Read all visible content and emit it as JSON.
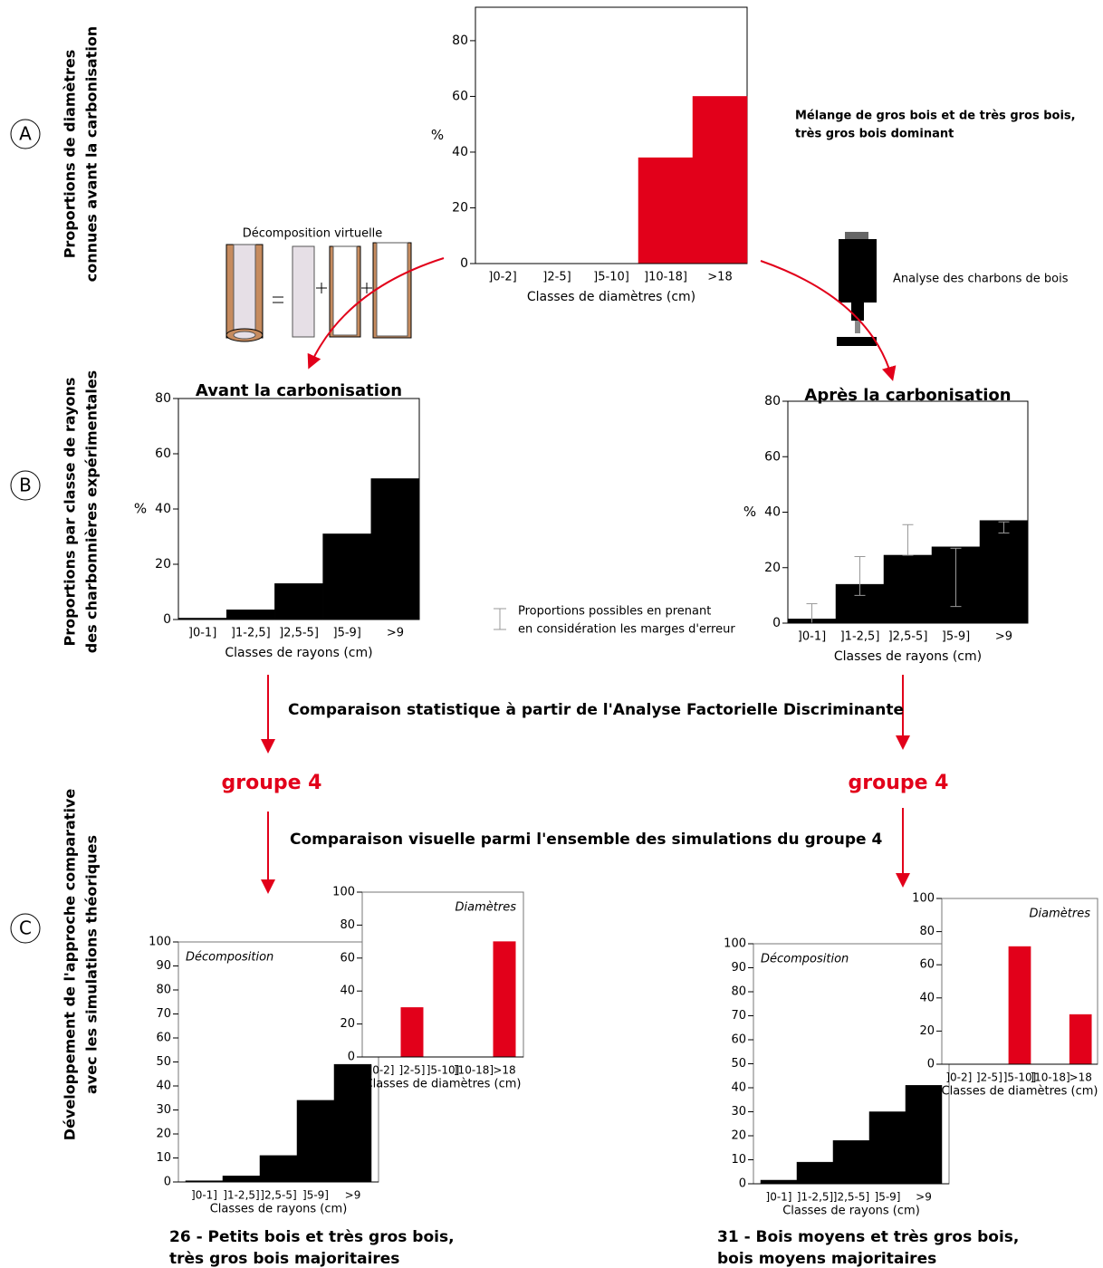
{
  "chart_data": [
    {
      "type": "bar",
      "xlabel": "Classes de diamètres (cm)",
      "ylabel": "%",
      "categories": [
        "]0-2]",
        "]2-5]",
        "]5-10]",
        "]10-18]",
        ">18"
      ],
      "values": [
        0,
        0,
        0,
        38,
        60
      ],
      "color": "#e2001a",
      "ylim": [
        0,
        92
      ],
      "yticks": [
        0,
        20,
        40,
        60,
        80
      ]
    },
    {
      "type": "bar",
      "title": "Avant la carbonisation",
      "xlabel": "Classes de rayons (cm)",
      "ylabel": "%",
      "categories": [
        "]0-1]",
        "]1-2,5]",
        "]2,5-5]",
        "]5-9]",
        ">9"
      ],
      "values": [
        0.5,
        3.5,
        13,
        31,
        51
      ],
      "color": "#000000",
      "ylim": [
        0,
        80
      ],
      "yticks": [
        0,
        20,
        40,
        60,
        80
      ]
    },
    {
      "type": "bar",
      "title": "Après la carbonisation",
      "xlabel": "Classes de rayons (cm)",
      "ylabel": "%",
      "categories": [
        "]0-1]",
        "]1-2,5]",
        "]2,5-5]",
        "]5-9]",
        ">9"
      ],
      "values": [
        1.5,
        14,
        24.5,
        27.5,
        37
      ],
      "errors": [
        [
          0,
          7
        ],
        [
          10,
          24
        ],
        [
          24.5,
          35.5
        ],
        [
          6,
          27
        ],
        [
          32.5,
          36.5
        ]
      ],
      "error_color": "#999999",
      "color": "#000000",
      "ylim": [
        0,
        80
      ],
      "yticks": [
        0,
        20,
        40,
        60,
        80
      ]
    },
    {
      "type": "bar",
      "inset_label": "Décomposition",
      "xlabel": "Classes de rayons (cm)",
      "categories": [
        "]0-1]",
        "]1-2,5]",
        "]2,5-5]",
        "]5-9]",
        ">9"
      ],
      "values": [
        0.5,
        2.5,
        11,
        34,
        49
      ],
      "color": "#000000",
      "ylim": [
        0,
        100
      ],
      "yticks": [
        0,
        10,
        20,
        30,
        40,
        50,
        60,
        70,
        80,
        90,
        100
      ]
    },
    {
      "type": "bar",
      "inset_label": "Diamètres",
      "xlabel": "Classes de diamètres (cm)",
      "categories": [
        "]0-2]",
        "]2-5]",
        "]5-10]",
        "]10-18]",
        ">18"
      ],
      "values": [
        0,
        30,
        0,
        0,
        70
      ],
      "color": "#e2001a",
      "ylim": [
        0,
        100
      ],
      "yticks": [
        0,
        20,
        40,
        60,
        80,
        100
      ]
    },
    {
      "type": "bar",
      "inset_label": "Décomposition",
      "xlabel": "Classes de rayons (cm)",
      "categories": [
        "]0-1]",
        "]1-2,5]",
        "]2,5-5]",
        "]5-9]",
        ">9"
      ],
      "values": [
        1.5,
        9,
        18,
        30,
        41
      ],
      "color": "#000000",
      "ylim": [
        0,
        100
      ],
      "yticks": [
        0,
        10,
        20,
        30,
        40,
        50,
        60,
        70,
        80,
        90,
        100
      ]
    },
    {
      "type": "bar",
      "inset_label": "Diamètres",
      "xlabel": "Classes de diamètres (cm)",
      "categories": [
        "]0-2]",
        "]2-5]",
        "]5-10]",
        "]10-18]",
        ">18"
      ],
      "values": [
        0,
        0,
        71,
        0,
        30
      ],
      "color": "#e2001a",
      "ylim": [
        0,
        100
      ],
      "yticks": [
        0,
        20,
        40,
        60,
        80,
        100
      ]
    }
  ],
  "figure": {
    "row_letters": [
      "A",
      "B",
      "C"
    ],
    "row_labels": [
      [
        "Proportions de diamètres",
        "connues avant la carbonisation"
      ],
      [
        "Proportions par classe de rayons",
        "des charbonnières expérimentales"
      ],
      [
        "Développement de l'approche comparative",
        "avec les simulations théoriques"
      ]
    ],
    "decomposition_label": "Décomposition virtuelle",
    "analysis_label": "Analyse des charbons de bois",
    "mix_note": [
      "Mélange de gros bois et de très gros bois,",
      "très gros bois dominant"
    ],
    "error_note": [
      "Proportions possibles en prenant",
      "en considération les marges d'erreur"
    ],
    "comparison_stat": "Comparaison statistique à partir de l'Analyse Factorielle Discriminante",
    "group_labels": [
      "groupe 4",
      "groupe 4"
    ],
    "comparison_visual": "Comparaison visuelle parmi l'ensemble des simulations du groupe 4",
    "captions": [
      [
        "26 - Petits bois et très gros bois,",
        "très gros bois majoritaires"
      ],
      [
        "31 - Bois moyens et très gros bois,",
        "bois moyens majoritaires"
      ]
    ]
  }
}
